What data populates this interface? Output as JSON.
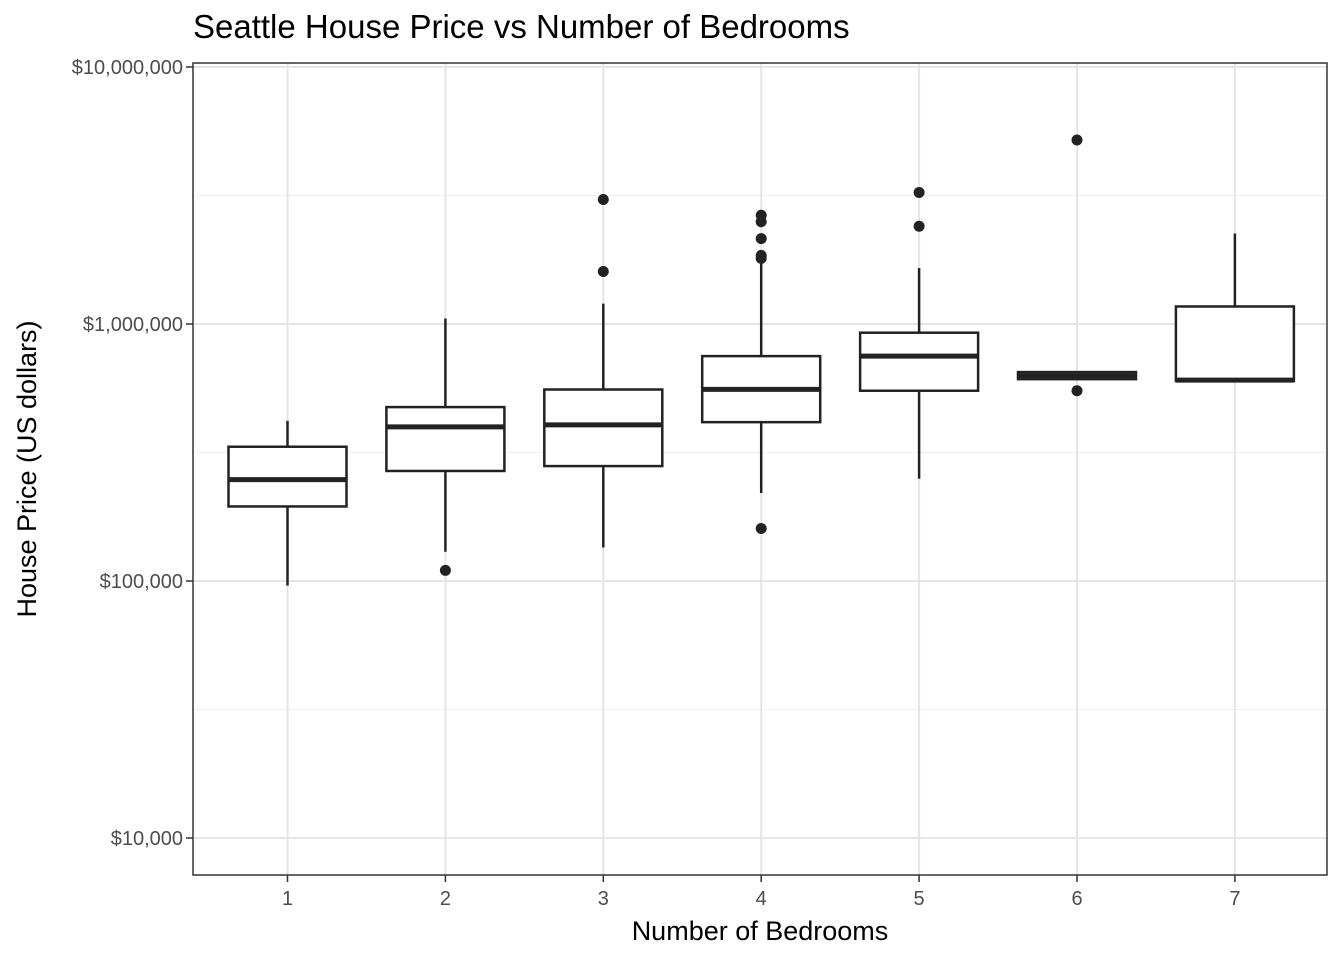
{
  "chart_data": {
    "type": "box",
    "title": "Seattle House Price vs Number of Bedrooms",
    "xlabel": "Number of Bedrooms",
    "ylabel": "House Price (US dollars)",
    "y_scale": "log10",
    "ylim": [
      7000,
      11000000
    ],
    "y_ticks": [
      10000,
      100000,
      1000000,
      10000000
    ],
    "y_tick_labels": [
      "$10,000",
      "$100,000",
      "$1,000,000",
      "$10,000,000"
    ],
    "categories": [
      "1",
      "2",
      "3",
      "4",
      "5",
      "6",
      "7"
    ],
    "grid": true,
    "boxes": [
      {
        "category": "1",
        "whisker_low": 96000,
        "q1": 195000,
        "median": 248000,
        "q3": 333000,
        "whisker_high": 420000,
        "outliers": []
      },
      {
        "category": "2",
        "whisker_low": 130000,
        "q1": 268000,
        "median": 398000,
        "q3": 475000,
        "whisker_high": 1050000,
        "outliers": [
          110000
        ]
      },
      {
        "category": "3",
        "whisker_low": 135000,
        "q1": 280000,
        "median": 405000,
        "q3": 556000,
        "whisker_high": 1200000,
        "outliers": [
          1600000,
          3050000
        ]
      },
      {
        "category": "4",
        "whisker_low": 220000,
        "q1": 415000,
        "median": 557000,
        "q3": 750000,
        "whisker_high": 1850000,
        "outliers": [
          160000,
          1800000,
          1850000,
          2150000,
          2500000,
          2650000
        ]
      },
      {
        "category": "5",
        "whisker_low": 250000,
        "q1": 550000,
        "median": 750000,
        "q3": 925000,
        "whisker_high": 1650000,
        "outliers": [
          2400000,
          3250000
        ]
      },
      {
        "category": "6",
        "whisker_low": 610000,
        "q1": 610000,
        "median": 630000,
        "q3": 650000,
        "whisker_high": 650000,
        "outliers": [
          550000,
          5200000
        ]
      },
      {
        "category": "7",
        "whisker_low": 600000,
        "q1": 600000,
        "median": 605000,
        "q3": 1170000,
        "whisker_high": 2250000,
        "outliers": []
      }
    ],
    "colors": {
      "box_stroke": "#222222",
      "grid_major": "#e5e5e5",
      "grid_minor": "#f0f0f0",
      "tick_text": "#4d4d4d",
      "panel_border": "#333333"
    }
  }
}
